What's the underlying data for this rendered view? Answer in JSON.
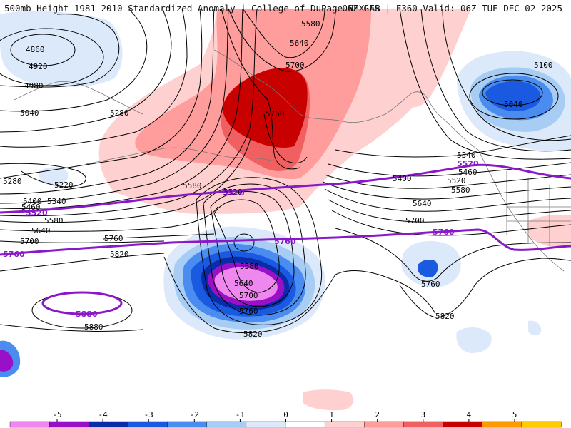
{
  "header": {
    "left": "500mb Height 1981-2010 Standardized Anomaly | College of DuPage NEXLAB",
    "right": "06Z GFS | F360 Valid: 06Z TUE DEC 02 2025"
  },
  "map": {
    "contour_labels": [
      "4860",
      "4920",
      "4980",
      "5040",
      "5280",
      "5280",
      "5220",
      "5400",
      "5460",
      "5340",
      "5520",
      "5580",
      "5640",
      "5700",
      "5580",
      "5640",
      "5700",
      "5760",
      "5580",
      "5760",
      "5820",
      "5880",
      "5640",
      "5580",
      "5700",
      "5760",
      "5820",
      "5400",
      "5460",
      "5520",
      "5580",
      "5640",
      "5700",
      "5340",
      "5760",
      "5820",
      "5100",
      "5040"
    ],
    "highlight_labels": [
      "5520",
      "5520",
      "5760",
      "5760",
      "5880",
      "5520",
      "5760"
    ]
  },
  "colorbar": {
    "ticks": [
      "-5",
      "-4",
      "-3",
      "-2",
      "-1",
      "0",
      "1",
      "2",
      "3",
      "4",
      "5"
    ],
    "colors": [
      "#ee88ee",
      "#9a10c8",
      "#0a2ca8",
      "#1a5ae0",
      "#4a8cf0",
      "#a8cdf5",
      "#dce9fb",
      "#ffffff",
      "#ffd0d0",
      "#ff9c9c",
      "#f06060",
      "#c80000",
      "#ff9900",
      "#ffcc00"
    ]
  },
  "colors": {
    "contour": "#000000",
    "highlight": "#8a18c8"
  }
}
